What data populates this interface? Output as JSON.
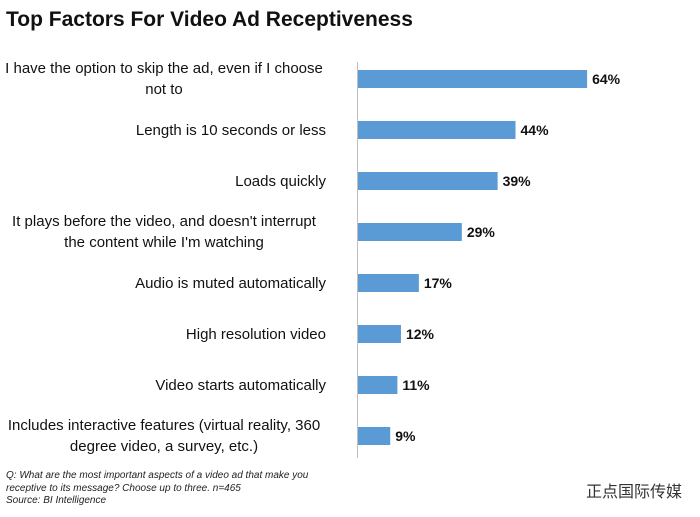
{
  "chart_data": {
    "type": "hbar",
    "title": "Top Factors For Video Ad Receptiveness",
    "categories": [
      "I have the option to skip the ad, even if I choose not to",
      "Length is 10 seconds or less",
      "Loads quickly",
      "It plays before the video, and doesn't interrupt the content while I'm watching",
      "Audio is muted automatically",
      "High resolution video",
      "Video starts automatically",
      "Includes interactive features (virtual reality, 360 degree video, a survey, etc.)"
    ],
    "values": [
      64,
      44,
      39,
      29,
      17,
      12,
      11,
      9
    ],
    "value_labels": [
      "64%",
      "44%",
      "39%",
      "29%",
      "17%",
      "12%",
      "11%",
      "9%"
    ],
    "color": "#5b9bd5",
    "note": "Q: What are the most important aspects of a video ad that make you receptive to its message? Choose up to three. n=465",
    "source": "Source: BI Intelligence",
    "watermark": "正点国际传媒"
  }
}
